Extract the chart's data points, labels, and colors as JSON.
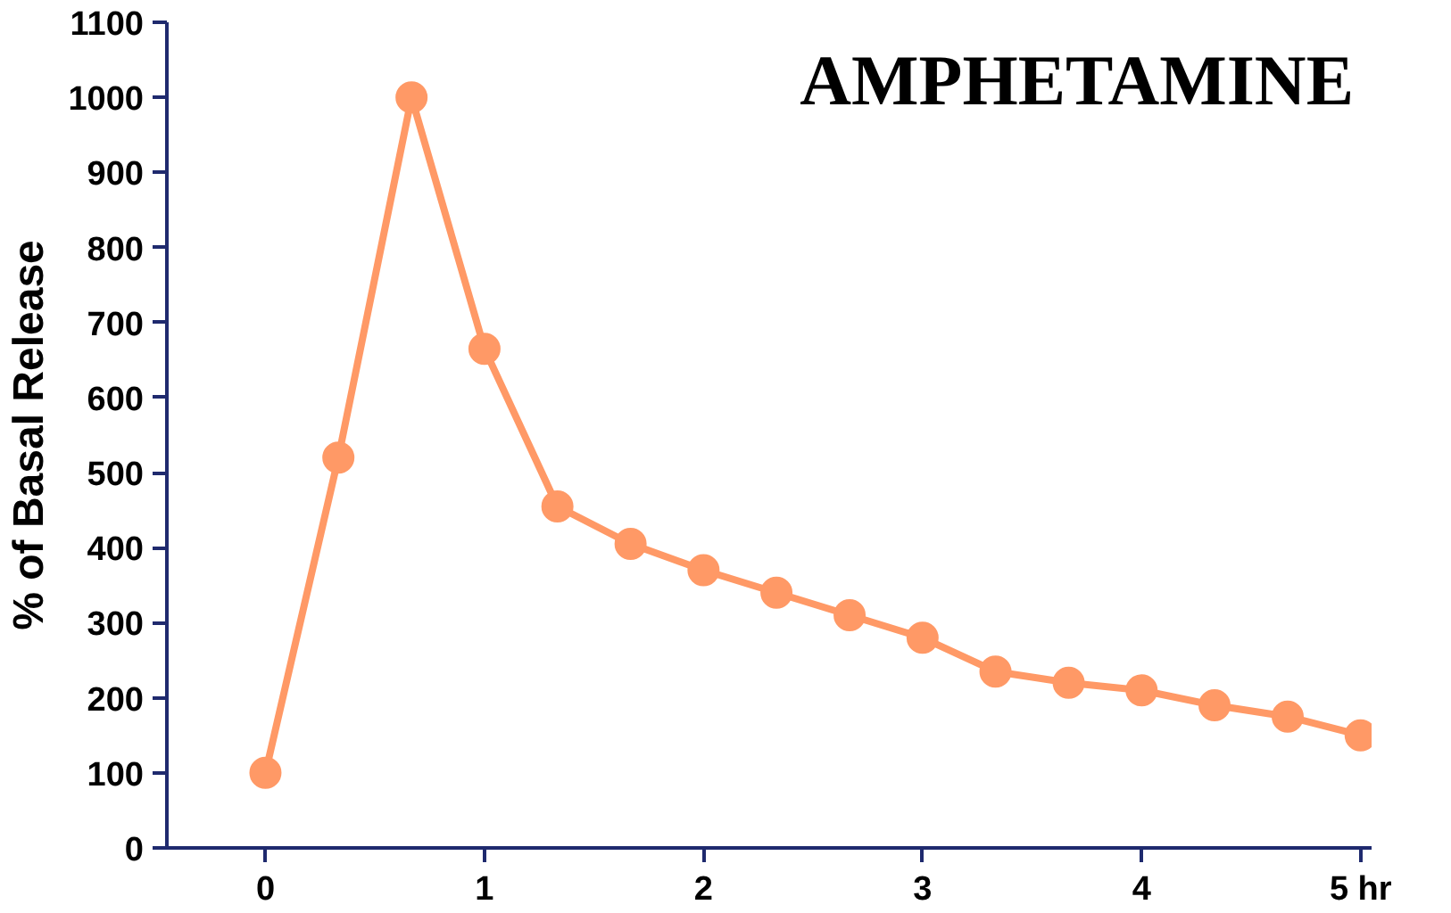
{
  "chart_data": {
    "type": "line",
    "title": "AMPHETAMINE",
    "ylabel": "% of Basal Release",
    "x": [
      0,
      0.333,
      0.667,
      1,
      1.333,
      1.667,
      2,
      2.333,
      2.667,
      3,
      3.333,
      3.667,
      4,
      4.333,
      4.667,
      5
    ],
    "series": [
      {
        "color": "#ff9966",
        "values": [
          100,
          520,
          1000,
          665,
          455,
          405,
          370,
          340,
          310,
          280,
          235,
          220,
          210,
          190,
          175,
          150
        ]
      }
    ],
    "xlim": [
      -0.45,
      5.05
    ],
    "xticks": [
      0,
      1,
      2,
      3,
      4,
      {
        "value": 5,
        "label": "5 hr"
      }
    ],
    "ylim": [
      0,
      1100
    ],
    "yticks": [
      0,
      100,
      200,
      300,
      400,
      500,
      600,
      700,
      800,
      900,
      1000,
      1100
    ],
    "marker": "circle",
    "line_style": "solid",
    "grid": false
  }
}
